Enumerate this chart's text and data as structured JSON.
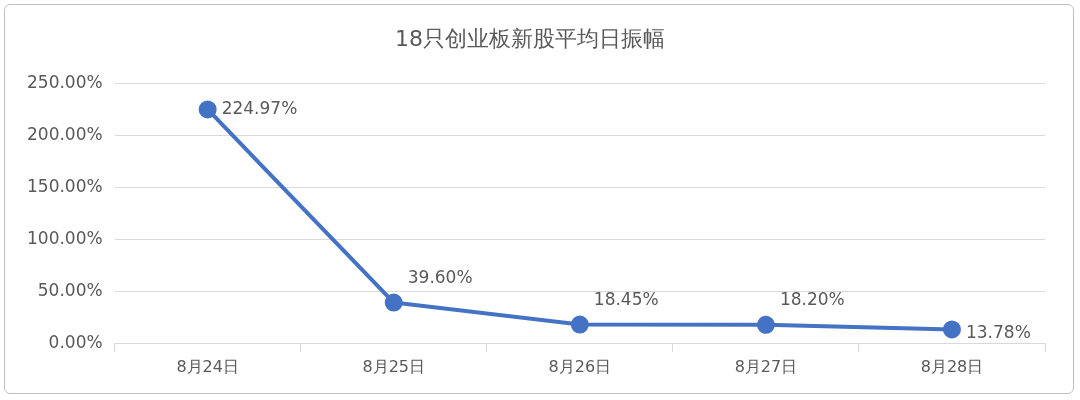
{
  "chart_data": {
    "type": "line",
    "title": "18只创业板新股平均日振幅",
    "categories": [
      "8月24日",
      "8月25日",
      "8月26日",
      "8月27日",
      "8月28日"
    ],
    "series": [
      {
        "color": "#4472c4",
        "values": [
          224.97,
          39.6,
          18.45,
          18.2,
          13.78
        ],
        "value_labels": [
          "224.97%",
          "39.60%",
          "18.45%",
          "18.20%",
          "13.78%"
        ]
      }
    ],
    "ylim": [
      0,
      250
    ],
    "yticks": [
      {
        "value": 0,
        "label": "0.00%"
      },
      {
        "value": 50,
        "label": "50.00%"
      },
      {
        "value": 100,
        "label": "100.00%"
      },
      {
        "value": 150,
        "label": "150.00%"
      },
      {
        "value": 200,
        "label": "200.00%"
      },
      {
        "value": 250,
        "label": "250.00%"
      }
    ],
    "grid": "y",
    "legend": false,
    "marker": "circle",
    "line_style": "solid"
  }
}
